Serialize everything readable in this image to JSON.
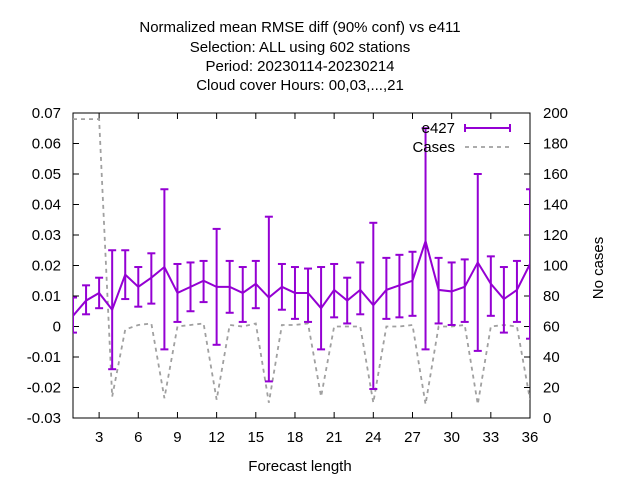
{
  "chart_data": {
    "type": "line",
    "title": [
      "Normalized mean RMSE diff (90% conf) vs e411",
      "Selection: ALL using   602 stations",
      "Period: 20230114-20230214",
      "Cloud cover   Hours:  00,03,...,21"
    ],
    "xlabel": "Forecast length",
    "ylabel": "",
    "y2label": "No cases",
    "xlim": [
      1,
      36
    ],
    "ylim": [
      -0.03,
      0.07
    ],
    "y2lim": [
      0,
      200
    ],
    "xticks": [
      3,
      6,
      9,
      12,
      15,
      18,
      21,
      24,
      27,
      30,
      33,
      36
    ],
    "xtick_labels": [
      "3",
      "6",
      "9",
      "12",
      "15",
      "18",
      "21",
      "24",
      "27",
      "30",
      "33",
      "36"
    ],
    "yticks": [
      -0.03,
      -0.02,
      -0.01,
      0,
      0.01,
      0.02,
      0.03,
      0.04,
      0.05,
      0.06,
      0.07
    ],
    "ytick_labels": [
      "-0.03",
      "-0.02",
      "-0.01",
      "0",
      "0.01",
      "0.02",
      "0.03",
      "0.04",
      "0.05",
      "0.06",
      "0.07"
    ],
    "y2ticks": [
      0,
      20,
      40,
      60,
      80,
      100,
      120,
      140,
      160,
      180,
      200
    ],
    "y2tick_labels": [
      "0",
      "20",
      "40",
      "60",
      "80",
      "100",
      "120",
      "140",
      "160",
      "180",
      "200"
    ],
    "grid": false,
    "legend_position": "top-right",
    "series": [
      {
        "name": "e427",
        "color": "#9400d3",
        "axis": "left",
        "style": "line-errorbars",
        "x": [
          1,
          2,
          3,
          4,
          5,
          6,
          7,
          8,
          9,
          10,
          11,
          12,
          13,
          14,
          15,
          16,
          17,
          18,
          19,
          20,
          21,
          22,
          23,
          24,
          25,
          26,
          27,
          28,
          29,
          30,
          31,
          32,
          33,
          34,
          35,
          36
        ],
        "y": [
          0.0035,
          0.0085,
          0.011,
          0.0055,
          0.017,
          0.013,
          0.016,
          0.0195,
          0.011,
          0.013,
          0.015,
          0.013,
          0.013,
          0.011,
          0.014,
          0.0095,
          0.013,
          0.011,
          0.011,
          0.006,
          0.012,
          0.0085,
          0.012,
          0.007,
          0.012,
          0.0135,
          0.015,
          0.028,
          0.012,
          0.0115,
          0.013,
          0.021,
          0.014,
          0.009,
          0.012,
          0.0205
        ],
        "low": [
          -0.002,
          0.004,
          0.006,
          -0.014,
          0.009,
          0.0065,
          0.0075,
          -0.0075,
          0.0015,
          0.005,
          0.008,
          -0.006,
          0.0045,
          0.0015,
          0.006,
          -0.018,
          0.0055,
          0.0025,
          0.0015,
          -0.0075,
          0.003,
          0.001,
          0.004,
          -0.0205,
          0.0025,
          0.003,
          0.0035,
          -0.0075,
          0.001,
          0.0005,
          0.0015,
          -0.008,
          0.0035,
          -0.002,
          0.0015,
          -0.004
        ],
        "high": [
          0.0095,
          0.0135,
          0.016,
          0.025,
          0.025,
          0.0195,
          0.024,
          0.045,
          0.0205,
          0.021,
          0.0215,
          0.032,
          0.0215,
          0.0195,
          0.0215,
          0.036,
          0.0205,
          0.0195,
          0.019,
          0.0195,
          0.0205,
          0.016,
          0.021,
          0.034,
          0.0225,
          0.0235,
          0.0245,
          0.065,
          0.0225,
          0.021,
          0.022,
          0.05,
          0.023,
          0.0195,
          0.0215,
          0.045
        ]
      },
      {
        "name": "Cases",
        "color": "#a0a0a0",
        "axis": "right",
        "style": "dashed",
        "x": [
          1,
          2,
          3,
          4,
          5,
          6,
          7,
          8,
          9,
          10,
          11,
          12,
          13,
          14,
          15,
          16,
          17,
          18,
          19,
          20,
          21,
          22,
          23,
          24,
          25,
          26,
          27,
          28,
          29,
          30,
          31,
          32,
          33,
          34,
          35,
          36
        ],
        "y": [
          196,
          196,
          196,
          14,
          58,
          61,
          62,
          13,
          60,
          61,
          62,
          12,
          61,
          60,
          62,
          10,
          61,
          61,
          62,
          14,
          60,
          60,
          60,
          10,
          60,
          60,
          61,
          9,
          60,
          60,
          61,
          9,
          60,
          61,
          60,
          12
        ]
      }
    ]
  }
}
